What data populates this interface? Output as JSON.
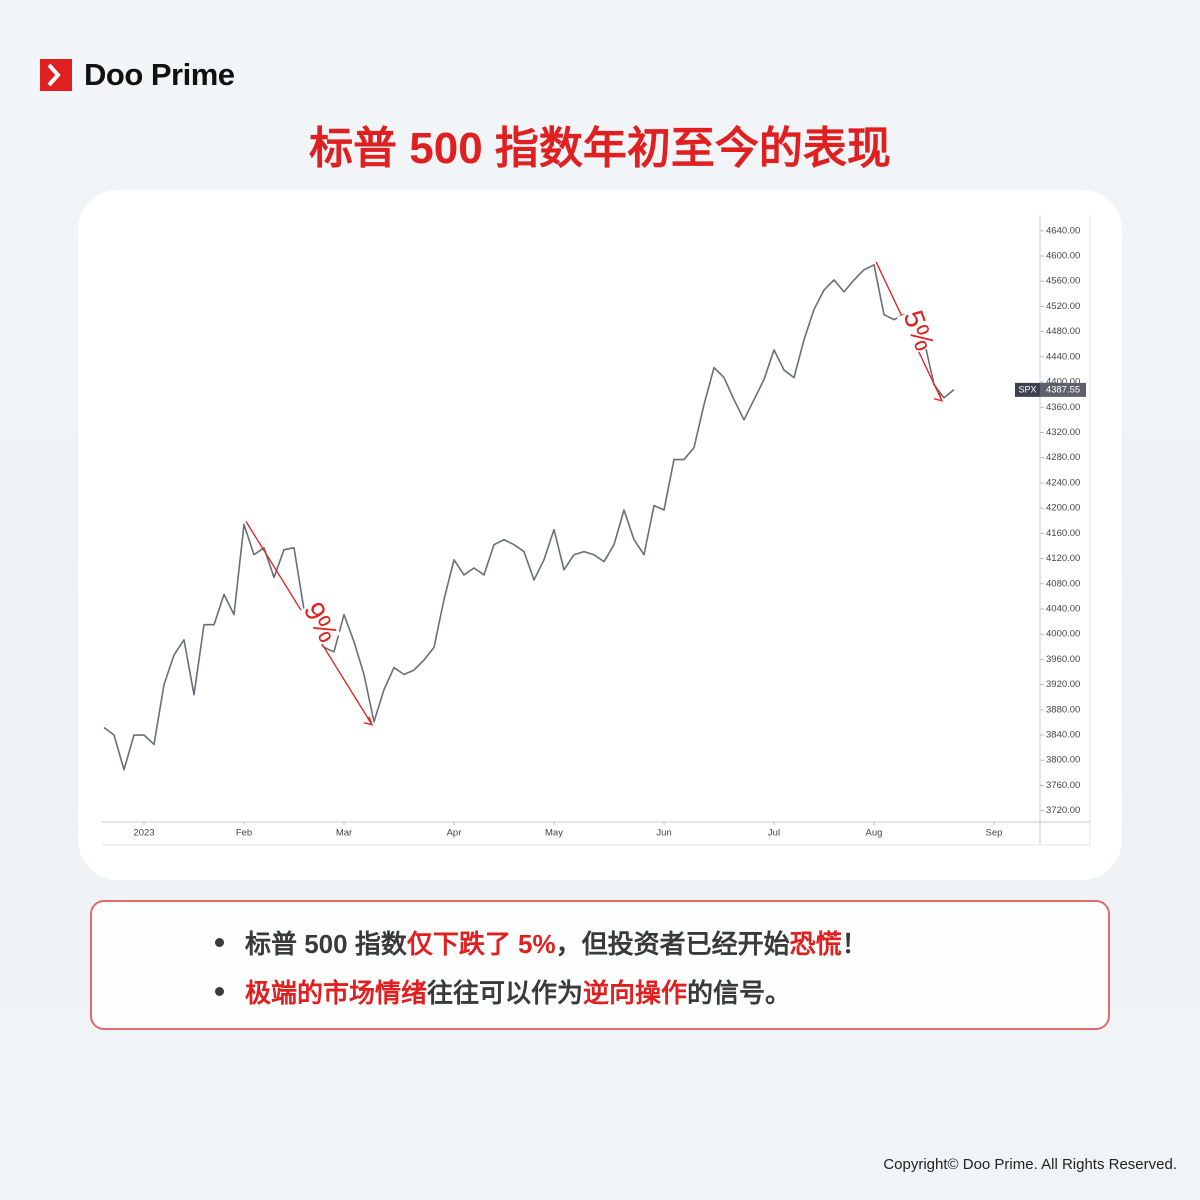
{
  "brand": "Doo Prime",
  "title": "标普 500 指数年初至今的表现",
  "chart_data": {
    "type": "line",
    "categories": [
      null,
      null,
      null,
      null,
      "2023",
      null,
      null,
      null,
      null,
      null,
      null,
      null,
      null,
      null,
      "Feb",
      null,
      null,
      null,
      null,
      null,
      null,
      null,
      null,
      null,
      "Mar",
      null,
      null,
      null,
      null,
      null,
      null,
      null,
      null,
      null,
      null,
      "Apr",
      null,
      null,
      null,
      null,
      null,
      null,
      null,
      null,
      null,
      "May",
      null,
      null,
      null,
      null,
      null,
      null,
      null,
      null,
      null,
      null,
      "Jun",
      null,
      null,
      null,
      null,
      null,
      null,
      null,
      null,
      null,
      null,
      "Jul",
      null,
      null,
      null,
      null,
      null,
      null,
      null,
      null,
      null,
      "Aug",
      null,
      null,
      null,
      null,
      null,
      null,
      null,
      null,
      null,
      null,
      null,
      "Sep"
    ],
    "series": [
      {
        "name": "SPX",
        "color": "#6b6e78",
        "values": [
          3852,
          3840,
          3785,
          3840,
          3840,
          3825,
          3920,
          3967,
          3991,
          3904,
          4015,
          4015,
          4063,
          4031,
          4174,
          4126,
          4137,
          4090,
          4134,
          4137,
          4039,
          4000,
          3979,
          3972,
          4031,
          3988,
          3936,
          3861,
          3912,
          3947,
          3936,
          3943,
          3959,
          3979,
          4055,
          4118,
          4094,
          4105,
          4094,
          4142,
          4150,
          4142,
          4131,
          4086,
          4118,
          4166,
          4102,
          4126,
          4131,
          4126,
          4115,
          4142,
          4197,
          4150,
          4126,
          4204,
          4197,
          4277,
          4277,
          4296,
          4364,
          4423,
          4407,
          4372,
          4340,
          4372,
          4404,
          4451,
          4419,
          4407,
          4467,
          4515,
          4546,
          4562,
          4543,
          4562,
          4578,
          4586,
          4507,
          4499,
          4507,
          4483,
          4467,
          4396,
          4375,
          4388,
          null,
          null,
          null,
          null
        ]
      }
    ],
    "last_value": 4387.55,
    "ylim": [
      3702,
      4665
    ],
    "yticks": [
      {
        "value": 3720,
        "label": "3720.00"
      },
      {
        "value": 3760,
        "label": "3760.00"
      },
      {
        "value": 3800,
        "label": "3800.00"
      },
      {
        "value": 3840,
        "label": "3840.00"
      },
      {
        "value": 3880,
        "label": "3880.00"
      },
      {
        "value": 3920,
        "label": "3920.00"
      },
      {
        "value": 3960,
        "label": "3960.00"
      },
      {
        "value": 4000,
        "label": "4000.00"
      },
      {
        "value": 4040,
        "label": "4040.00"
      },
      {
        "value": 4080,
        "label": "4080.00"
      },
      {
        "value": 4120,
        "label": "4120.00"
      },
      {
        "value": 4160,
        "label": "4160.00"
      },
      {
        "value": 4200,
        "label": "4200.00"
      },
      {
        "value": 4240,
        "label": "4240.00"
      },
      {
        "value": 4280,
        "label": "4280.00"
      },
      {
        "value": 4320,
        "label": "4320.00"
      },
      {
        "value": 4360,
        "label": "4360.00"
      },
      {
        "value": 4400,
        "label": "4400.00"
      },
      {
        "value": 4440,
        "label": "4440.00"
      },
      {
        "value": 4480,
        "label": "4480.00"
      },
      {
        "value": 4520,
        "label": "4520.00"
      },
      {
        "value": 4560,
        "label": "4560.00"
      },
      {
        "value": 4600,
        "label": "4600.00"
      },
      {
        "value": 4640,
        "label": "4640.00"
      }
    ],
    "annotations": [
      {
        "text": "9%",
        "color": "#e02020"
      },
      {
        "text": "5%",
        "color": "#e02020"
      }
    ]
  },
  "bullets": [
    [
      {
        "text": "标普 500 指数",
        "color": "#3a3a3a"
      },
      {
        "text": "仅下跌了 5%",
        "color": "#e02020"
      },
      {
        "text": "，但投资者已经开始",
        "color": "#3a3a3a"
      },
      {
        "text": "恐慌",
        "color": "#e02020"
      },
      {
        "text": "！",
        "color": "#3a3a3a"
      }
    ],
    [
      {
        "text": "极端的市场情绪",
        "color": "#e02020"
      },
      {
        "text": "往往可以作为",
        "color": "#3a3a3a"
      },
      {
        "text": "逆向操作",
        "color": "#e02020"
      },
      {
        "text": "的信号。",
        "color": "#3a3a3a"
      }
    ]
  ],
  "copyright": "Copyright© Doo Prime. All Rights Reserved."
}
